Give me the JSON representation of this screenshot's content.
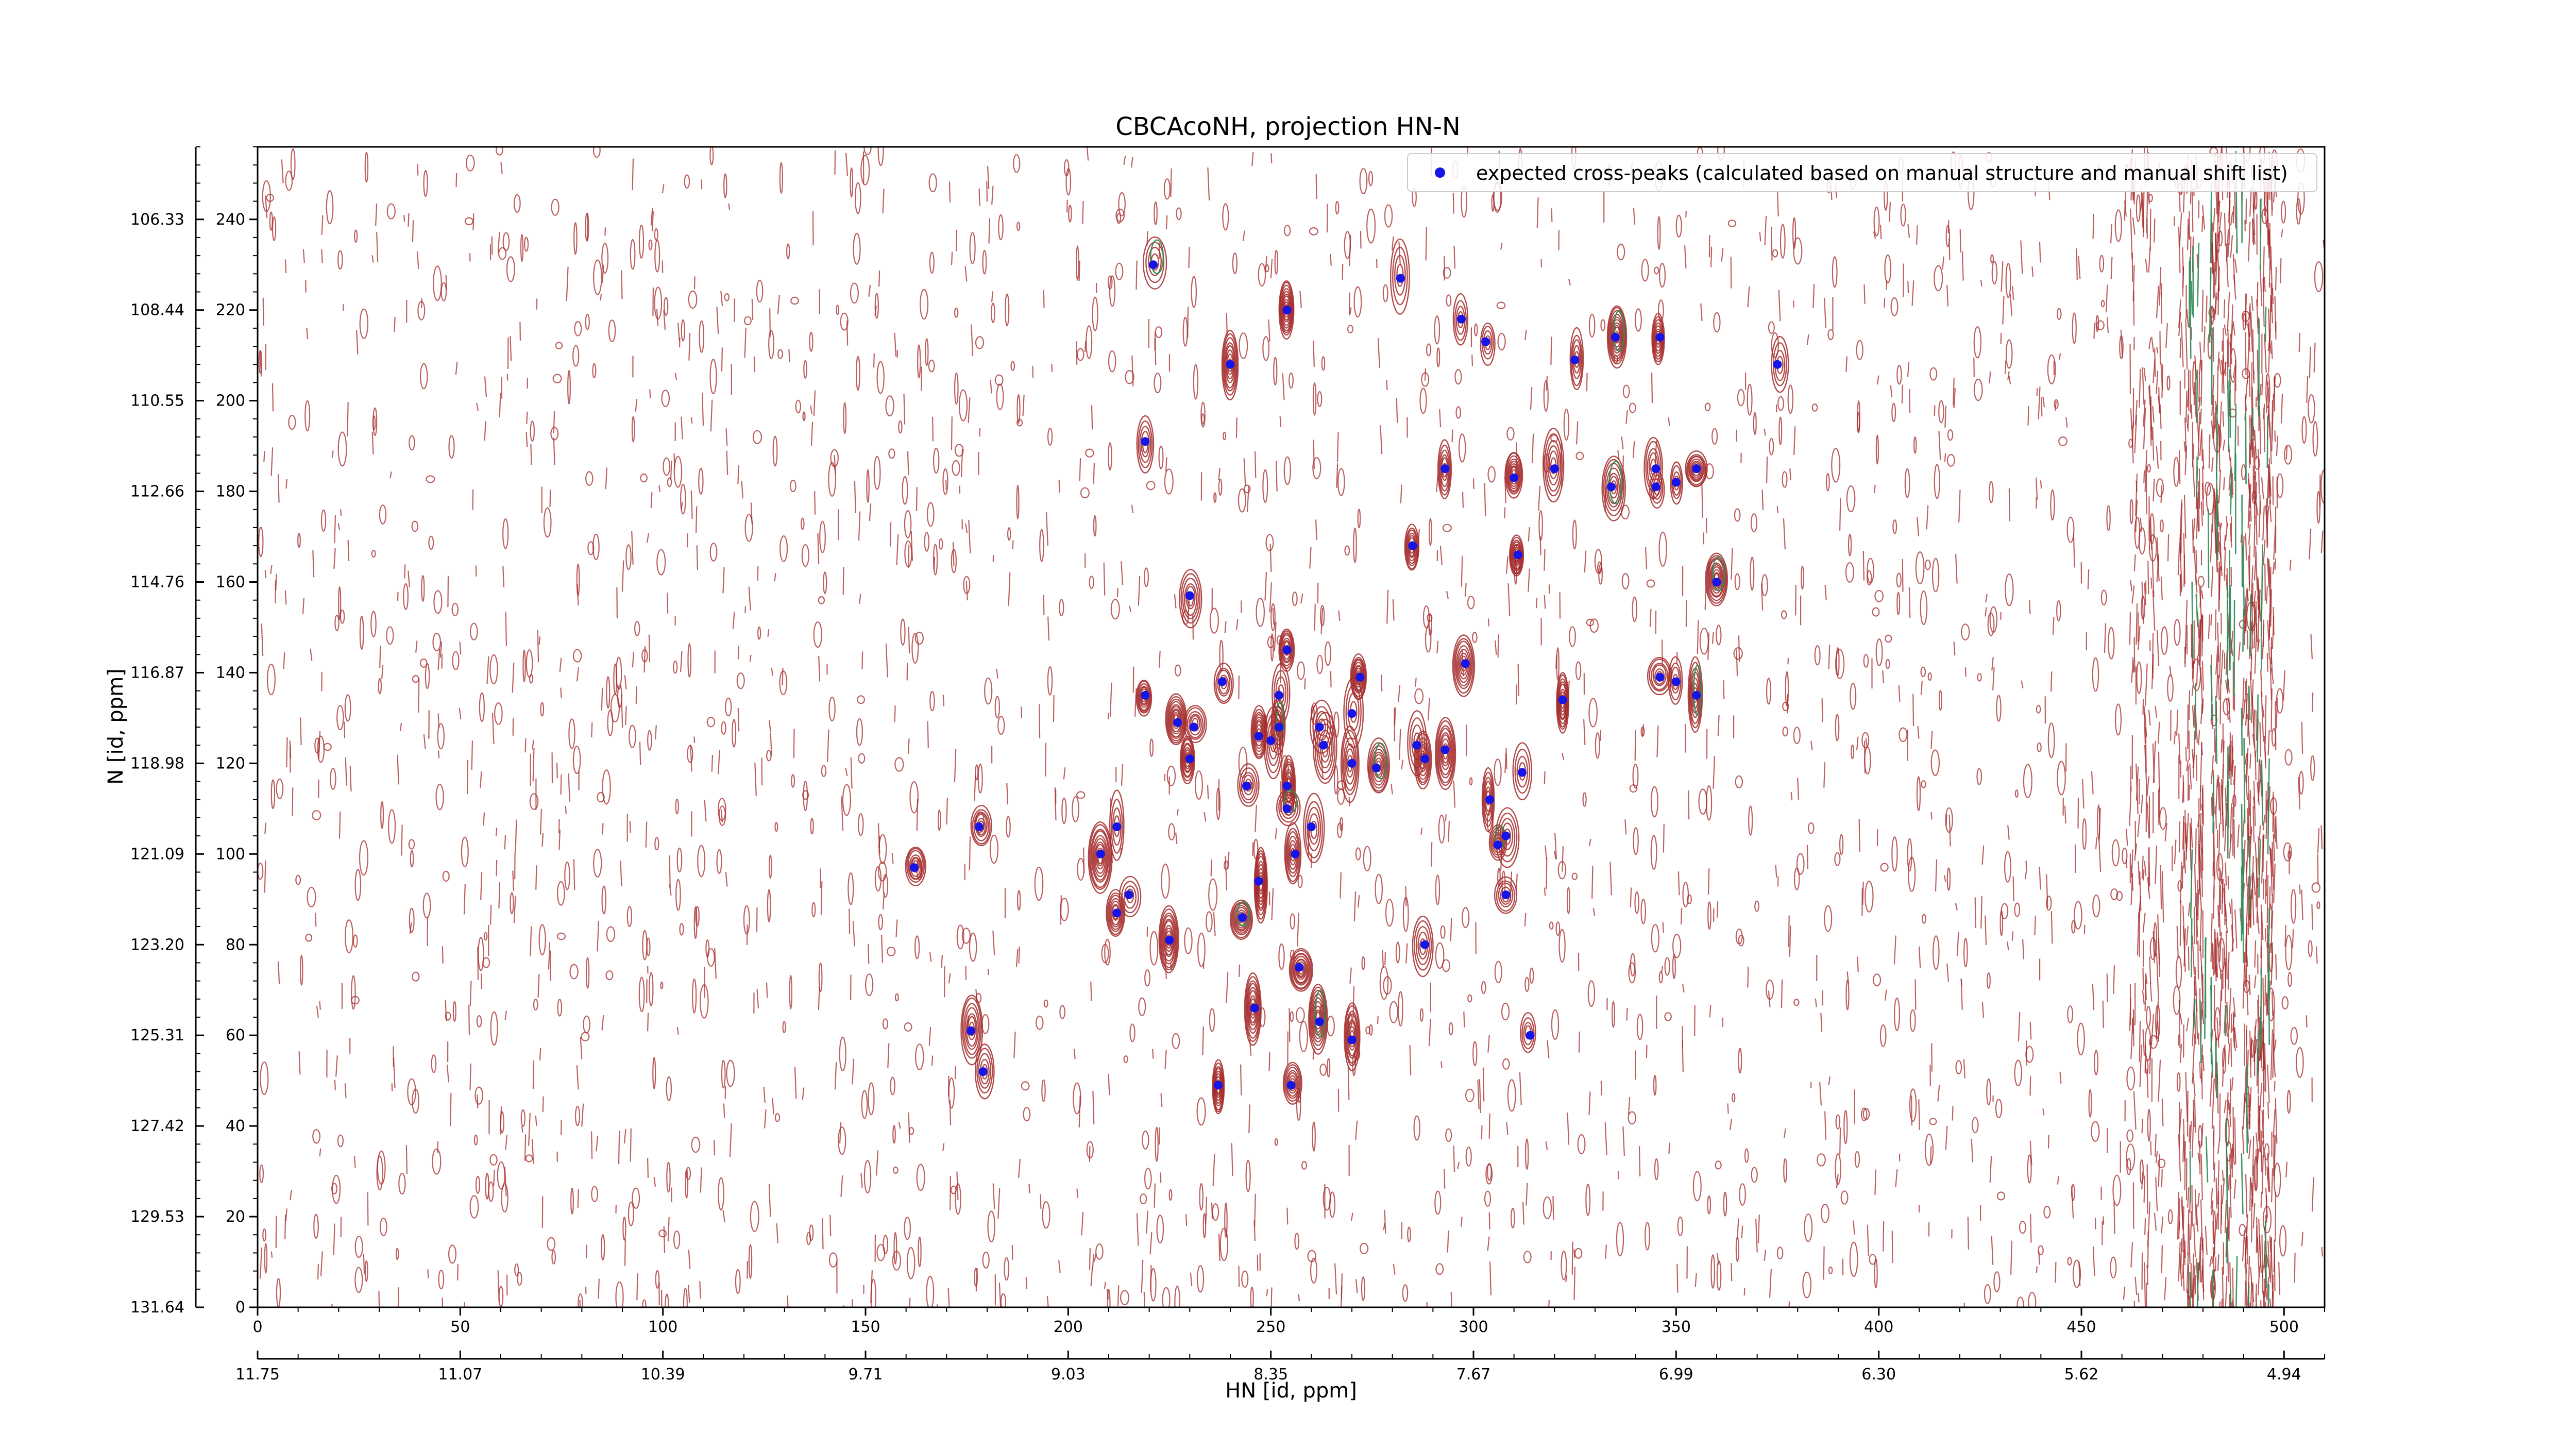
{
  "chart_data": {
    "type": "scatter",
    "title": "CBCAcoNH, projection HN-N",
    "xlabel": "HN [id, ppm]",
    "ylabel": "N [id, ppm]",
    "x_index_range": [
      0,
      510
    ],
    "y_index_range": [
      0,
      256
    ],
    "x_index_ticks": [
      0,
      50,
      100,
      150,
      200,
      250,
      300,
      350,
      400,
      450,
      500
    ],
    "y_index_ticks": [
      0,
      20,
      40,
      60,
      80,
      100,
      120,
      140,
      160,
      180,
      200,
      220,
      240
    ],
    "hn_ppm_ticks": [
      "11.75",
      "11.07",
      "10.39",
      "9.71",
      "9.03",
      "8.35",
      "7.67",
      "6.99",
      "6.30",
      "5.62",
      "4.94"
    ],
    "n_ppm_ticks": [
      "131.64",
      "129.53",
      "127.42",
      "125.31",
      "123.20",
      "121.09",
      "118.98",
      "116.87",
      "114.76",
      "112.66",
      "110.55",
      "108.44",
      "106.33"
    ],
    "legend": {
      "placement": "top-right",
      "label": "expected cross-peaks (calculated based on manual structure and manual shift list)"
    },
    "marker_color": "#1515e8",
    "contour_colors": {
      "positive": "#a52a2a",
      "negative": "#2e8b57"
    },
    "series": [
      {
        "name": "expected cross-peaks (calculated based on manual structure and manual shift list)",
        "points": [
          [
            221,
            230
          ],
          [
            254,
            220
          ],
          [
            282,
            227
          ],
          [
            297,
            218
          ],
          [
            303,
            213
          ],
          [
            240,
            208
          ],
          [
            325,
            209
          ],
          [
            335,
            214
          ],
          [
            346,
            214
          ],
          [
            375,
            208
          ],
          [
            219,
            191
          ],
          [
            293,
            185
          ],
          [
            310,
            183
          ],
          [
            320,
            185
          ],
          [
            334,
            181
          ],
          [
            345,
            185
          ],
          [
            350,
            182
          ],
          [
            355,
            185
          ],
          [
            345,
            181
          ],
          [
            285,
            168
          ],
          [
            311,
            166
          ],
          [
            360,
            160
          ],
          [
            230,
            157
          ],
          [
            219,
            135
          ],
          [
            238,
            138
          ],
          [
            254,
            145
          ],
          [
            252,
            135
          ],
          [
            272,
            139
          ],
          [
            252,
            128
          ],
          [
            262,
            128
          ],
          [
            270,
            131
          ],
          [
            298,
            142
          ],
          [
            322,
            134
          ],
          [
            346,
            139
          ],
          [
            350,
            138
          ],
          [
            355,
            135
          ],
          [
            227,
            129
          ],
          [
            231,
            128
          ],
          [
            247,
            126
          ],
          [
            250,
            125
          ],
          [
            263,
            124
          ],
          [
            270,
            120
          ],
          [
            276,
            119
          ],
          [
            286,
            124
          ],
          [
            293,
            123
          ],
          [
            288,
            121
          ],
          [
            230,
            121
          ],
          [
            244,
            115
          ],
          [
            254,
            115
          ],
          [
            254,
            110
          ],
          [
            312,
            118
          ],
          [
            304,
            112
          ],
          [
            178,
            106
          ],
          [
            212,
            106
          ],
          [
            260,
            106
          ],
          [
            308,
            104
          ],
          [
            306,
            102
          ],
          [
            208,
            100
          ],
          [
            256,
            100
          ],
          [
            162,
            97
          ],
          [
            247,
            94
          ],
          [
            215,
            91
          ],
          [
            212,
            87
          ],
          [
            243,
            86
          ],
          [
            308,
            91
          ],
          [
            225,
            81
          ],
          [
            288,
            80
          ],
          [
            257,
            75
          ],
          [
            246,
            66
          ],
          [
            176,
            61
          ],
          [
            262,
            63
          ],
          [
            270,
            59
          ],
          [
            314,
            60
          ],
          [
            179,
            52
          ],
          [
            237,
            49
          ],
          [
            255,
            49
          ]
        ]
      }
    ]
  }
}
